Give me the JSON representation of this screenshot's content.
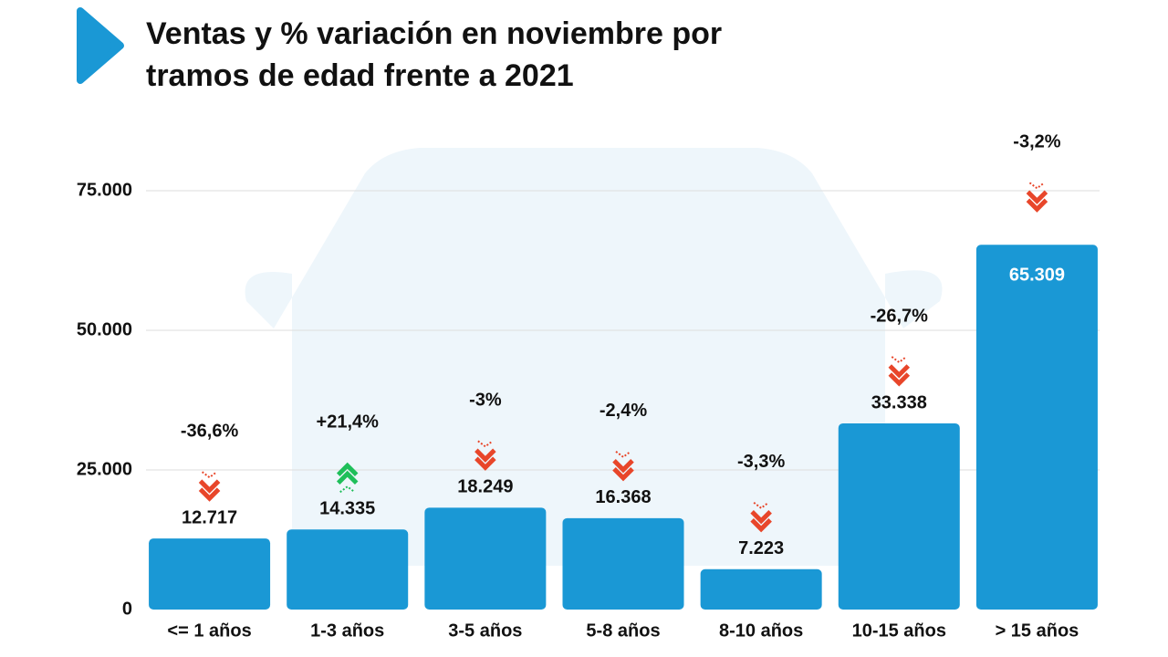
{
  "chart_data": {
    "type": "bar",
    "title": "Ventas y % variación en noviembre por tramos de edad frente a 2021",
    "categories": [
      "<= 1 años",
      "1-3 años",
      "3-5 años",
      "5-8 años",
      "8-10 años",
      "10-15 años",
      "> 15 años"
    ],
    "values": [
      12717,
      14335,
      18249,
      16368,
      7223,
      33338,
      65309
    ],
    "value_labels": [
      "12.717",
      "14.335",
      "18.249",
      "16.368",
      "7.223",
      "33.338",
      "65.309"
    ],
    "variation": [
      -36.6,
      21.4,
      -3,
      -2.4,
      -3.3,
      -26.7,
      -3.2
    ],
    "variation_labels": [
      "-36,6%",
      "+21,4%",
      "-3%",
      "-2,4%",
      "-3,3%",
      "-26,7%",
      "-3,2%"
    ],
    "color": "#1a98d5",
    "ylim": [
      0,
      75000
    ],
    "yticks": [
      0,
      {
        "value": 25000,
        "label": "25.000"
      },
      {
        "value": 50000,
        "label": "50.000"
      },
      {
        "value": 75000,
        "label": "75.000"
      }
    ],
    "grid": true
  }
}
